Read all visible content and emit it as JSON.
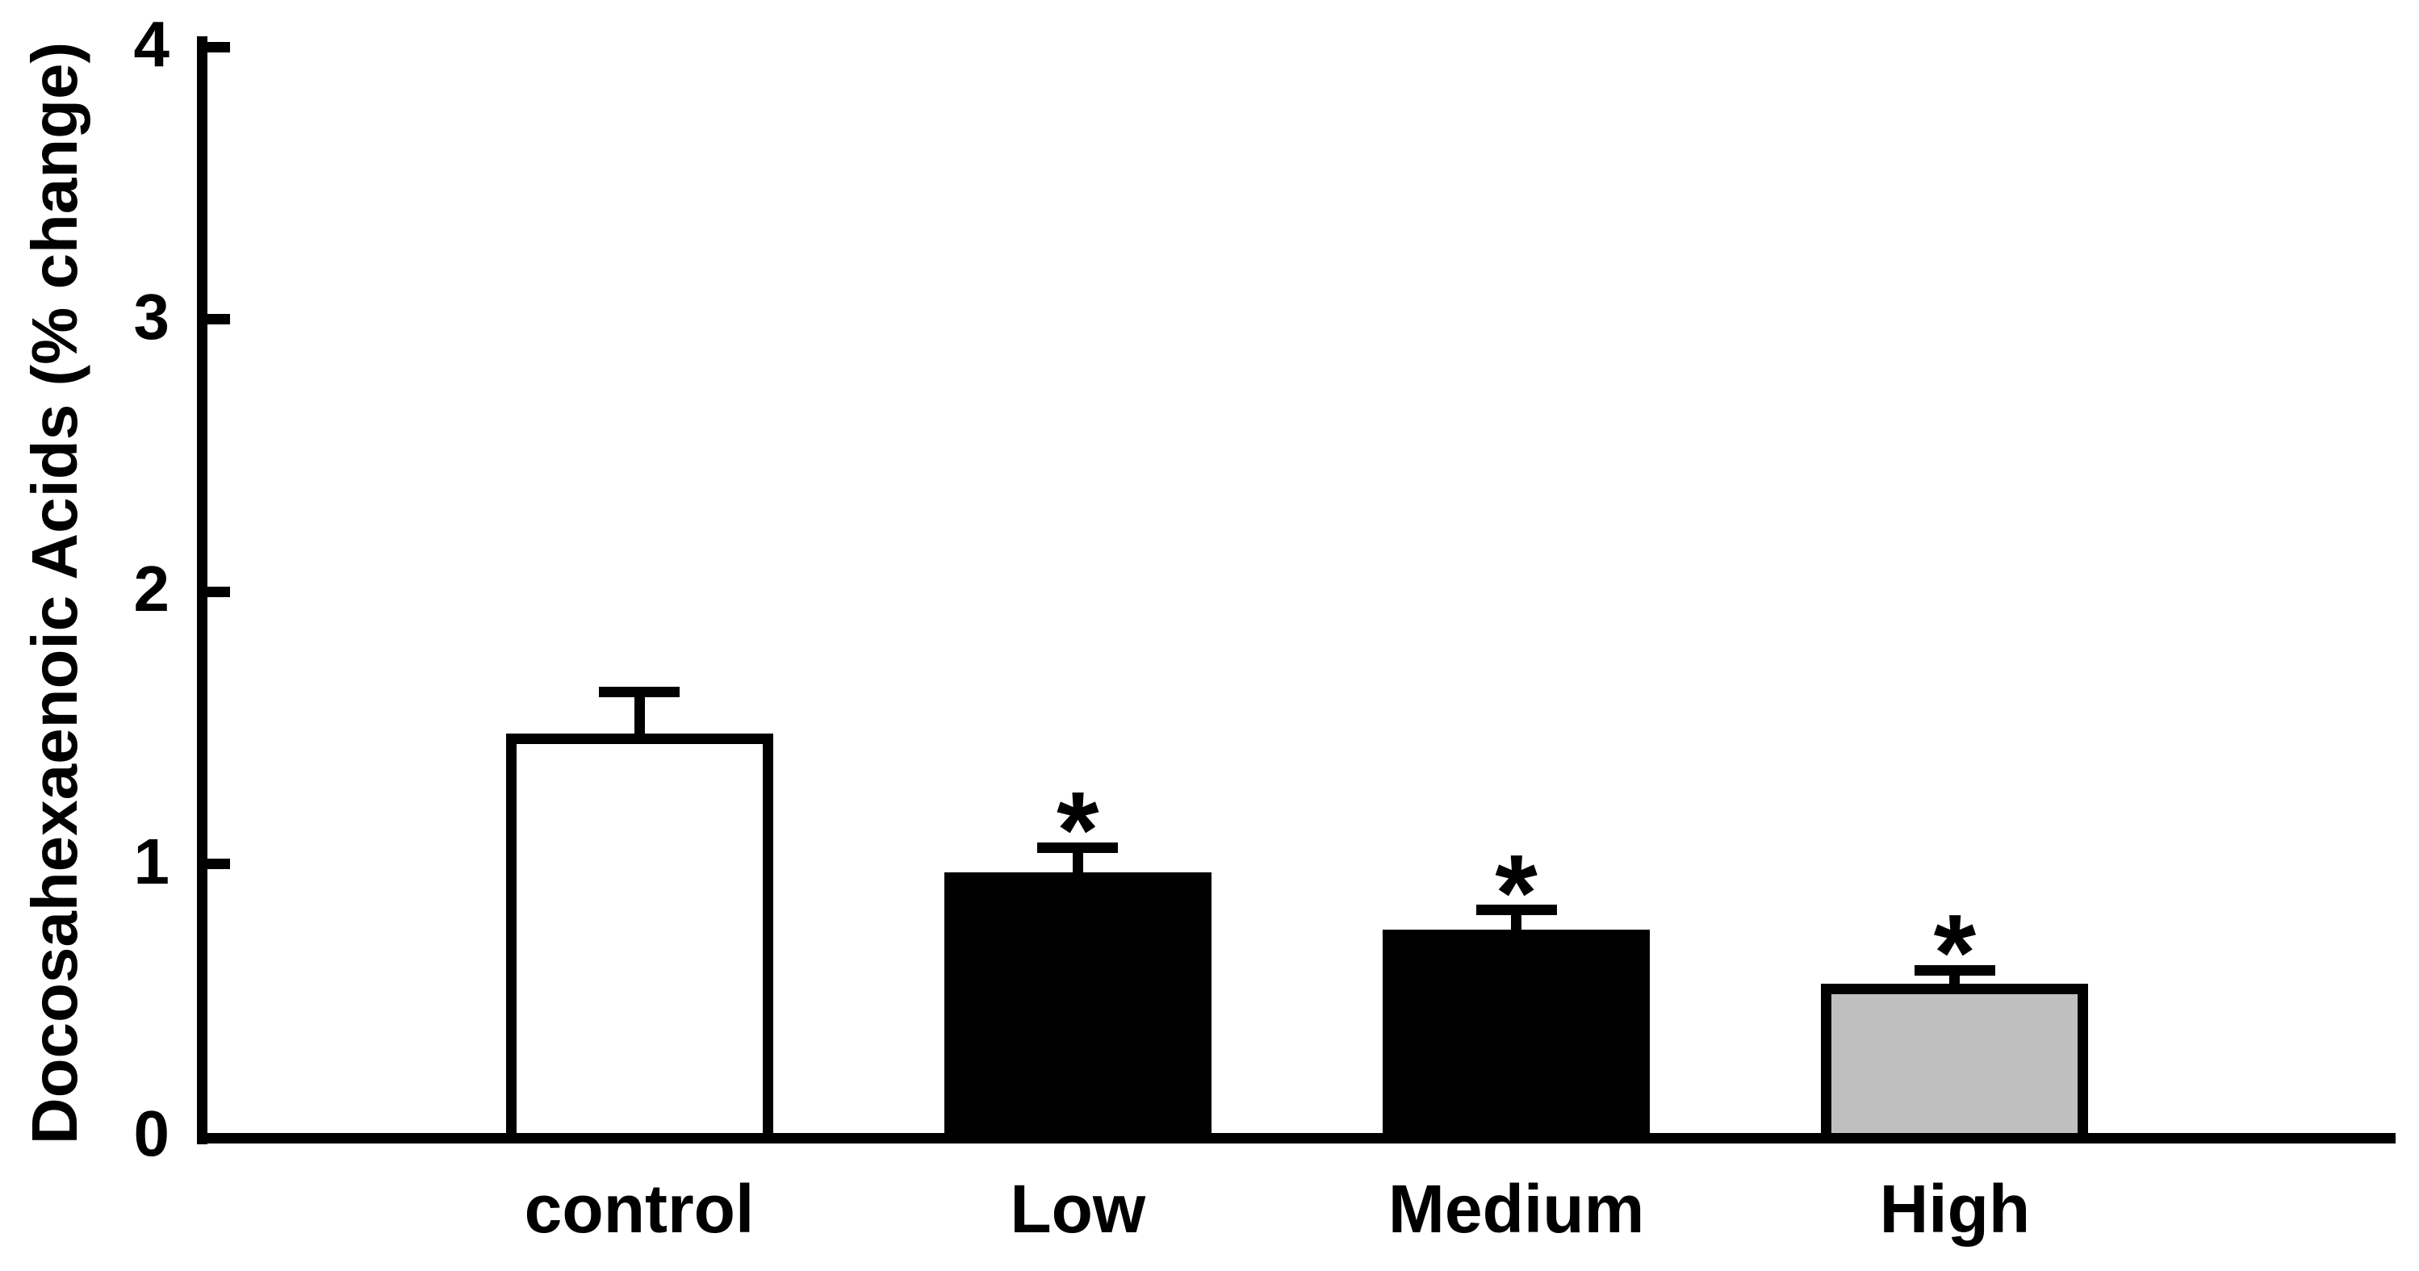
{
  "figure": {
    "background": "#ffffff",
    "text_color": "#000000"
  },
  "chart_data": {
    "type": "bar",
    "title": "",
    "xlabel": "",
    "ylabel": "Docosahexaenoic Acids (% change)",
    "categories": [
      "control",
      "Low",
      "Medium",
      "High"
    ],
    "values": [
      1.46,
      0.95,
      0.74,
      0.54
    ],
    "errors": [
      0.17,
      0.11,
      0.09,
      0.07
    ],
    "error_bar_style": "upper only, capped",
    "significance": [
      "",
      "*",
      "*",
      "*"
    ],
    "bar_colors": [
      "#ffffff",
      "#000000",
      "#000000",
      "#bfbfbf"
    ],
    "bar_border_color": "#000000",
    "ylim": [
      0,
      4
    ],
    "yticks": [
      0,
      1,
      2,
      3,
      4
    ],
    "ytick_side": "inward-right",
    "grid": false,
    "legend": null
  }
}
